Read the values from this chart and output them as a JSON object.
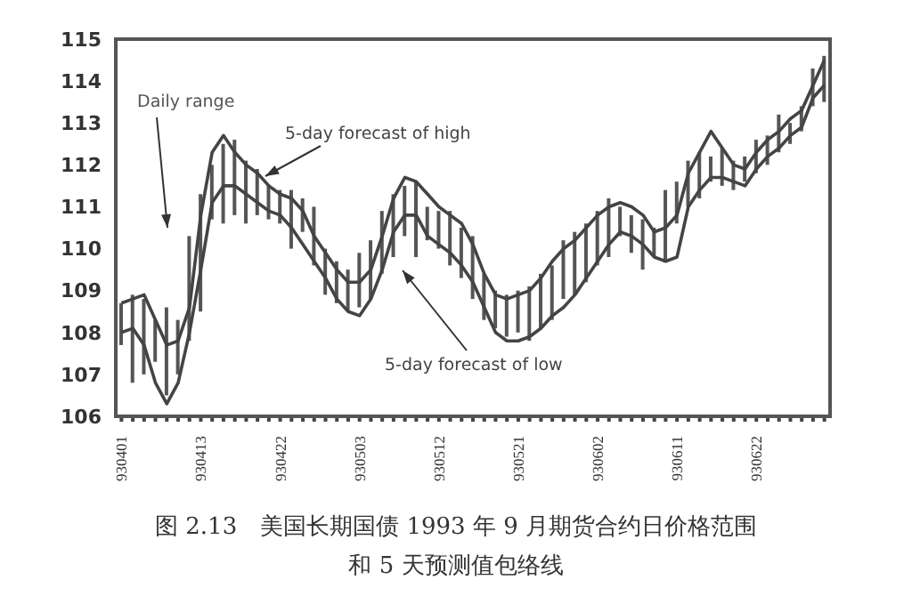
{
  "chart_data": {
    "type": "bar",
    "title": "图 2.13　美国长期国债 1993 年 9 月期货合约日价格范围",
    "subtitle": "和 5 天预测值包络线",
    "categories": [
      "930401",
      null,
      null,
      null,
      null,
      null,
      null,
      "930413",
      null,
      null,
      null,
      null,
      null,
      null,
      "930422",
      null,
      null,
      null,
      null,
      null,
      null,
      "930503",
      null,
      null,
      null,
      null,
      null,
      null,
      "930512",
      null,
      null,
      null,
      null,
      null,
      null,
      "930521",
      null,
      null,
      null,
      null,
      null,
      null,
      "930602",
      null,
      null,
      null,
      null,
      null,
      null,
      "930611",
      null,
      null,
      null,
      null,
      null,
      null,
      "930622",
      null,
      null,
      null,
      null,
      null,
      null
    ],
    "ylim": [
      106,
      115
    ],
    "yticks": [
      106,
      107,
      108,
      109,
      110,
      111,
      112,
      113,
      114,
      115
    ],
    "grid": false,
    "legend": false,
    "marker": "none",
    "series": [
      {
        "name": "Daily range",
        "color": "#555555",
        "base": [
          107.7,
          106.8,
          107.0,
          107.3,
          106.5,
          107.0,
          107.8,
          108.5,
          110.7,
          110.6,
          110.8,
          110.6,
          110.8,
          110.7,
          110.6,
          110.0,
          110.4,
          109.6,
          108.9,
          108.7,
          108.5,
          108.6,
          108.8,
          109.4,
          109.8,
          110.3,
          109.8,
          110.2,
          110.0,
          109.6,
          109.3,
          108.8,
          108.3,
          108.1,
          107.9,
          108.0,
          107.8,
          108.1,
          108.3,
          108.8,
          108.9,
          109.2,
          109.6,
          109.8,
          110.3,
          109.9,
          109.5,
          109.8,
          109.7,
          110.6,
          111.0,
          111.2,
          111.6,
          111.5,
          111.4,
          111.6,
          111.8,
          112.0,
          112.3,
          112.5,
          112.8,
          113.4,
          113.5
        ],
        "values": [
          1.0,
          2.1,
          1.8,
          1.0,
          2.1,
          1.3,
          2.5,
          2.8,
          1.3,
          1.9,
          1.8,
          1.5,
          1.1,
          0.8,
          0.8,
          1.4,
          0.8,
          1.4,
          1.1,
          1.0,
          1.0,
          1.3,
          1.4,
          1.5,
          1.5,
          1.2,
          1.8,
          0.8,
          0.9,
          1.3,
          1.2,
          1.5,
          1.1,
          0.9,
          1.0,
          1.0,
          1.3,
          1.3,
          1.3,
          1.4,
          1.5,
          1.4,
          1.3,
          1.4,
          0.7,
          0.9,
          1.2,
          0.7,
          1.7,
          1.0,
          1.1,
          1.1,
          0.6,
          0.9,
          0.7,
          0.6,
          0.8,
          0.7,
          0.9,
          0.5,
          0.6,
          0.9,
          1.1
        ]
      },
      {
        "name": "5-day forecast of high",
        "type": "line",
        "color": "#444444",
        "values": [
          108.7,
          108.8,
          108.9,
          108.3,
          107.7,
          107.8,
          108.6,
          110.8,
          112.3,
          112.7,
          112.3,
          112.0,
          111.8,
          111.5,
          111.3,
          111.2,
          110.9,
          110.3,
          109.9,
          109.5,
          109.2,
          109.2,
          109.5,
          110.3,
          111.2,
          111.7,
          111.6,
          111.3,
          111.0,
          110.8,
          110.6,
          110.1,
          109.4,
          108.9,
          108.8,
          108.9,
          109.0,
          109.3,
          109.7,
          110.0,
          110.2,
          110.5,
          110.8,
          111.0,
          111.1,
          111.0,
          110.8,
          110.4,
          110.5,
          110.8,
          111.8,
          112.3,
          112.8,
          112.4,
          112.0,
          111.9,
          112.3,
          112.6,
          112.8,
          113.1,
          113.3,
          113.9,
          114.5
        ]
      },
      {
        "name": "5-day forecast of low",
        "type": "line",
        "color": "#444444",
        "values": [
          108.0,
          108.1,
          107.7,
          106.8,
          106.3,
          106.8,
          108.0,
          109.5,
          111.1,
          111.5,
          111.5,
          111.3,
          111.1,
          110.9,
          110.8,
          110.5,
          110.1,
          109.7,
          109.3,
          108.8,
          108.5,
          108.4,
          108.8,
          109.5,
          110.4,
          110.8,
          110.8,
          110.3,
          110.1,
          109.9,
          109.6,
          109.2,
          108.6,
          108.0,
          107.8,
          107.8,
          107.9,
          108.1,
          108.4,
          108.6,
          108.9,
          109.3,
          109.7,
          110.1,
          110.4,
          110.3,
          110.1,
          109.8,
          109.7,
          109.8,
          111.0,
          111.4,
          111.7,
          111.7,
          111.6,
          111.5,
          111.9,
          112.2,
          112.4,
          112.7,
          112.9,
          113.6,
          113.9
        ]
      }
    ]
  }
}
